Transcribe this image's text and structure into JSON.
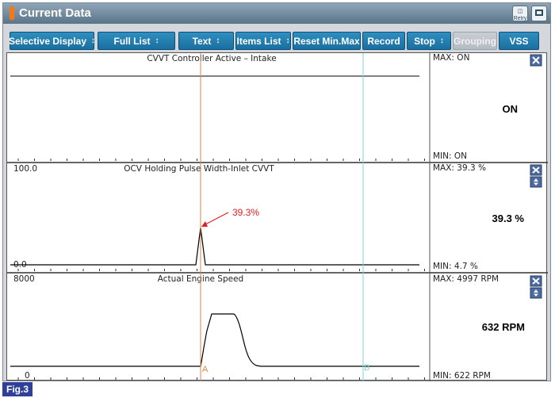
{
  "window": {
    "title": "Current Data",
    "retry_label": "Retry"
  },
  "toolbar": {
    "selective_display": "Selective Display",
    "full_list": "Full List",
    "text": "Text",
    "items_list": "Items List",
    "reset": "Reset Min.Max",
    "record": "Record",
    "stop": "Stop",
    "grouping": "Grouping",
    "vss": "VSS",
    "spinner_glyph": "↕"
  },
  "panels": [
    {
      "title": "CVVT Controller Active – Intake",
      "y_top": "",
      "y_bottom": "",
      "max": "MAX: ON",
      "min": "MIN: ON",
      "current": "ON"
    },
    {
      "title": "OCV Holding Pulse Width-Inlet CVVT",
      "y_top": "100.0",
      "y_bottom": "0.0",
      "max": "MAX:  39.3 %",
      "min": "MIN:   4.7 %",
      "current": "39.3 %",
      "annotation": "39.3%"
    },
    {
      "title": "Actual Engine Speed",
      "y_top": "8000",
      "y_bottom": "0",
      "max": "MAX:  4997 RPM",
      "min": "MIN:   622 RPM",
      "current": "632 RPM"
    }
  ],
  "cursors": {
    "a": "A",
    "b": "B",
    "a_color": "#d9844a",
    "b_color": "#7fd6d8"
  },
  "figure_label": "Fig.3"
}
